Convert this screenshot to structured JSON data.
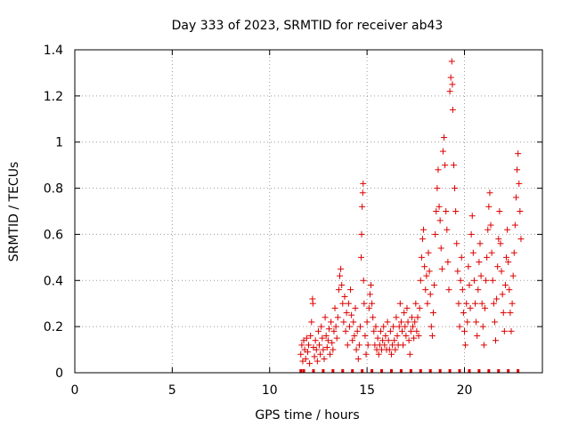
{
  "chart_data": {
    "type": "scatter",
    "title": "Day 333 of 2023, SRMTID for receiver ab43",
    "xlabel": "GPS time / hours",
    "ylabel": "SRMTID / TECUs",
    "xlim": [
      0,
      24
    ],
    "ylim": [
      0,
      1.4
    ],
    "xticks": [
      0,
      5,
      10,
      15,
      20
    ],
    "xtick_labels": [
      "0",
      "5",
      "10",
      "15",
      "20"
    ],
    "yticks": [
      0,
      0.2,
      0.4,
      0.6,
      0.8,
      1.0,
      1.2,
      1.4
    ],
    "ytick_labels": [
      "0",
      "0.2",
      "0.4",
      "0.6",
      "0.8",
      "1",
      "1.2",
      "1.4"
    ],
    "grid": true,
    "marker": "+",
    "color": "#dd0000",
    "series": [
      {
        "name": "SRMTID",
        "points": [
          [
            11.6,
            0.08
          ],
          [
            11.65,
            0.12
          ],
          [
            11.7,
            0.05
          ],
          [
            11.75,
            0.14
          ],
          [
            11.8,
            0.1
          ],
          [
            11.85,
            0.06
          ],
          [
            11.9,
            0.15
          ],
          [
            11.95,
            0.09
          ],
          [
            12.0,
            0.12
          ],
          [
            12.05,
            0.04
          ],
          [
            12.1,
            0.16
          ],
          [
            12.15,
            0.22
          ],
          [
            12.2,
            0.32
          ],
          [
            12.22,
            0.3
          ],
          [
            12.25,
            0.11
          ],
          [
            12.3,
            0.07
          ],
          [
            12.35,
            0.14
          ],
          [
            12.4,
            0.1
          ],
          [
            12.45,
            0.05
          ],
          [
            12.5,
            0.18
          ],
          [
            12.55,
            0.12
          ],
          [
            12.6,
            0.08
          ],
          [
            12.65,
            0.2
          ],
          [
            12.7,
            0.15
          ],
          [
            12.75,
            0.1
          ],
          [
            12.8,
            0.06
          ],
          [
            12.85,
            0.24
          ],
          [
            12.9,
            0.16
          ],
          [
            12.95,
            0.11
          ],
          [
            13.0,
            0.14
          ],
          [
            13.05,
            0.19
          ],
          [
            13.1,
            0.08
          ],
          [
            13.15,
            0.22
          ],
          [
            13.2,
            0.13
          ],
          [
            13.25,
            0.1
          ],
          [
            13.3,
            0.18
          ],
          [
            13.35,
            0.28
          ],
          [
            13.4,
            0.2
          ],
          [
            13.45,
            0.15
          ],
          [
            13.5,
            0.24
          ],
          [
            13.55,
            0.36
          ],
          [
            13.6,
            0.42
          ],
          [
            13.65,
            0.45
          ],
          [
            13.7,
            0.38
          ],
          [
            13.75,
            0.3
          ],
          [
            13.8,
            0.22
          ],
          [
            13.85,
            0.33
          ],
          [
            13.9,
            0.18
          ],
          [
            13.95,
            0.26
          ],
          [
            14.0,
            0.12
          ],
          [
            14.05,
            0.3
          ],
          [
            14.1,
            0.2
          ],
          [
            14.15,
            0.36
          ],
          [
            14.2,
            0.25
          ],
          [
            14.25,
            0.14
          ],
          [
            14.3,
            0.22
          ],
          [
            14.35,
            0.16
          ],
          [
            14.4,
            0.28
          ],
          [
            14.45,
            0.1
          ],
          [
            14.5,
            0.18
          ],
          [
            14.55,
            0.06
          ],
          [
            14.6,
            0.12
          ],
          [
            14.65,
            0.2
          ],
          [
            14.7,
            0.5
          ],
          [
            14.72,
            0.6
          ],
          [
            14.75,
            0.72
          ],
          [
            14.78,
            0.78
          ],
          [
            14.8,
            0.82
          ],
          [
            14.82,
            0.4
          ],
          [
            14.85,
            0.3
          ],
          [
            14.9,
            0.16
          ],
          [
            14.95,
            0.08
          ],
          [
            15.0,
            0.22
          ],
          [
            15.05,
            0.12
          ],
          [
            15.1,
            0.28
          ],
          [
            15.15,
            0.34
          ],
          [
            15.2,
            0.38
          ],
          [
            15.25,
            0.3
          ],
          [
            15.3,
            0.24
          ],
          [
            15.35,
            0.18
          ],
          [
            15.4,
            0.12
          ],
          [
            15.45,
            0.2
          ],
          [
            15.5,
            0.1
          ],
          [
            15.55,
            0.15
          ],
          [
            15.6,
            0.08
          ],
          [
            15.65,
            0.12
          ],
          [
            15.7,
            0.18
          ],
          [
            15.75,
            0.1
          ],
          [
            15.8,
            0.14
          ],
          [
            15.85,
            0.2
          ],
          [
            15.9,
            0.12
          ],
          [
            15.95,
            0.16
          ],
          [
            16.0,
            0.1
          ],
          [
            16.05,
            0.22
          ],
          [
            16.1,
            0.14
          ],
          [
            16.15,
            0.1
          ],
          [
            16.2,
            0.18
          ],
          [
            16.25,
            0.08
          ],
          [
            16.3,
            0.12
          ],
          [
            16.35,
            0.2
          ],
          [
            16.4,
            0.14
          ],
          [
            16.45,
            0.1
          ],
          [
            16.5,
            0.24
          ],
          [
            16.55,
            0.16
          ],
          [
            16.6,
            0.12
          ],
          [
            16.65,
            0.2
          ],
          [
            16.7,
            0.3
          ],
          [
            16.75,
            0.22
          ],
          [
            16.8,
            0.18
          ],
          [
            16.85,
            0.12
          ],
          [
            16.9,
            0.26
          ],
          [
            16.95,
            0.2
          ],
          [
            17.0,
            0.16
          ],
          [
            17.05,
            0.28
          ],
          [
            17.1,
            0.22
          ],
          [
            17.15,
            0.14
          ],
          [
            17.2,
            0.08
          ],
          [
            17.25,
            0.18
          ],
          [
            17.3,
            0.24
          ],
          [
            17.35,
            0.2
          ],
          [
            17.4,
            0.15
          ],
          [
            17.45,
            0.22
          ],
          [
            17.5,
            0.3
          ],
          [
            17.55,
            0.18
          ],
          [
            17.6,
            0.24
          ],
          [
            17.65,
            0.16
          ],
          [
            17.7,
            0.28
          ],
          [
            17.75,
            0.4
          ],
          [
            17.8,
            0.5
          ],
          [
            17.85,
            0.58
          ],
          [
            17.9,
            0.62
          ],
          [
            17.95,
            0.46
          ],
          [
            18.0,
            0.36
          ],
          [
            18.05,
            0.42
          ],
          [
            18.1,
            0.3
          ],
          [
            18.15,
            0.52
          ],
          [
            18.2,
            0.44
          ],
          [
            18.25,
            0.34
          ],
          [
            18.3,
            0.2
          ],
          [
            18.35,
            0.16
          ],
          [
            18.4,
            0.26
          ],
          [
            18.45,
            0.38
          ],
          [
            18.5,
            0.6
          ],
          [
            18.55,
            0.7
          ],
          [
            18.6,
            0.8
          ],
          [
            18.65,
            0.88
          ],
          [
            18.7,
            0.72
          ],
          [
            18.75,
            0.66
          ],
          [
            18.8,
            0.54
          ],
          [
            18.85,
            0.45
          ],
          [
            18.9,
            0.96
          ],
          [
            18.95,
            1.02
          ],
          [
            19.0,
            0.9
          ],
          [
            19.05,
            0.7
          ],
          [
            19.1,
            0.62
          ],
          [
            19.15,
            0.48
          ],
          [
            19.2,
            0.36
          ],
          [
            19.25,
            1.22
          ],
          [
            19.3,
            1.28
          ],
          [
            19.35,
            1.35
          ],
          [
            19.38,
            1.25
          ],
          [
            19.4,
            1.14
          ],
          [
            19.45,
            0.9
          ],
          [
            19.5,
            0.8
          ],
          [
            19.55,
            0.7
          ],
          [
            19.6,
            0.56
          ],
          [
            19.65,
            0.44
          ],
          [
            19.7,
            0.3
          ],
          [
            19.75,
            0.2
          ],
          [
            19.8,
            0.4
          ],
          [
            19.85,
            0.5
          ],
          [
            19.9,
            0.36
          ],
          [
            19.95,
            0.26
          ],
          [
            20.0,
            0.18
          ],
          [
            20.05,
            0.12
          ],
          [
            20.1,
            0.3
          ],
          [
            20.15,
            0.22
          ],
          [
            20.2,
            0.46
          ],
          [
            20.25,
            0.38
          ],
          [
            20.3,
            0.28
          ],
          [
            20.35,
            0.6
          ],
          [
            20.4,
            0.68
          ],
          [
            20.45,
            0.52
          ],
          [
            20.5,
            0.4
          ],
          [
            20.55,
            0.3
          ],
          [
            20.6,
            0.22
          ],
          [
            20.65,
            0.16
          ],
          [
            20.7,
            0.36
          ],
          [
            20.75,
            0.48
          ],
          [
            20.8,
            0.56
          ],
          [
            20.85,
            0.42
          ],
          [
            20.9,
            0.3
          ],
          [
            20.95,
            0.2
          ],
          [
            21.0,
            0.12
          ],
          [
            21.05,
            0.28
          ],
          [
            21.1,
            0.4
          ],
          [
            21.15,
            0.5
          ],
          [
            21.2,
            0.62
          ],
          [
            21.25,
            0.72
          ],
          [
            21.3,
            0.78
          ],
          [
            21.35,
            0.64
          ],
          [
            21.4,
            0.52
          ],
          [
            21.45,
            0.4
          ],
          [
            21.5,
            0.3
          ],
          [
            21.55,
            0.22
          ],
          [
            21.6,
            0.14
          ],
          [
            21.65,
            0.32
          ],
          [
            21.7,
            0.46
          ],
          [
            21.75,
            0.58
          ],
          [
            21.8,
            0.7
          ],
          [
            21.85,
            0.56
          ],
          [
            21.9,
            0.44
          ],
          [
            21.95,
            0.34
          ],
          [
            22.0,
            0.26
          ],
          [
            22.05,
            0.18
          ],
          [
            22.1,
            0.38
          ],
          [
            22.15,
            0.5
          ],
          [
            22.2,
            0.62
          ],
          [
            22.25,
            0.48
          ],
          [
            22.3,
            0.36
          ],
          [
            22.35,
            0.26
          ],
          [
            22.4,
            0.18
          ],
          [
            22.45,
            0.3
          ],
          [
            22.5,
            0.42
          ],
          [
            22.55,
            0.52
          ],
          [
            22.6,
            0.64
          ],
          [
            22.65,
            0.76
          ],
          [
            22.7,
            0.88
          ],
          [
            22.75,
            0.95
          ],
          [
            22.8,
            0.82
          ],
          [
            22.85,
            0.7
          ],
          [
            22.9,
            0.58
          ]
        ]
      }
    ]
  }
}
